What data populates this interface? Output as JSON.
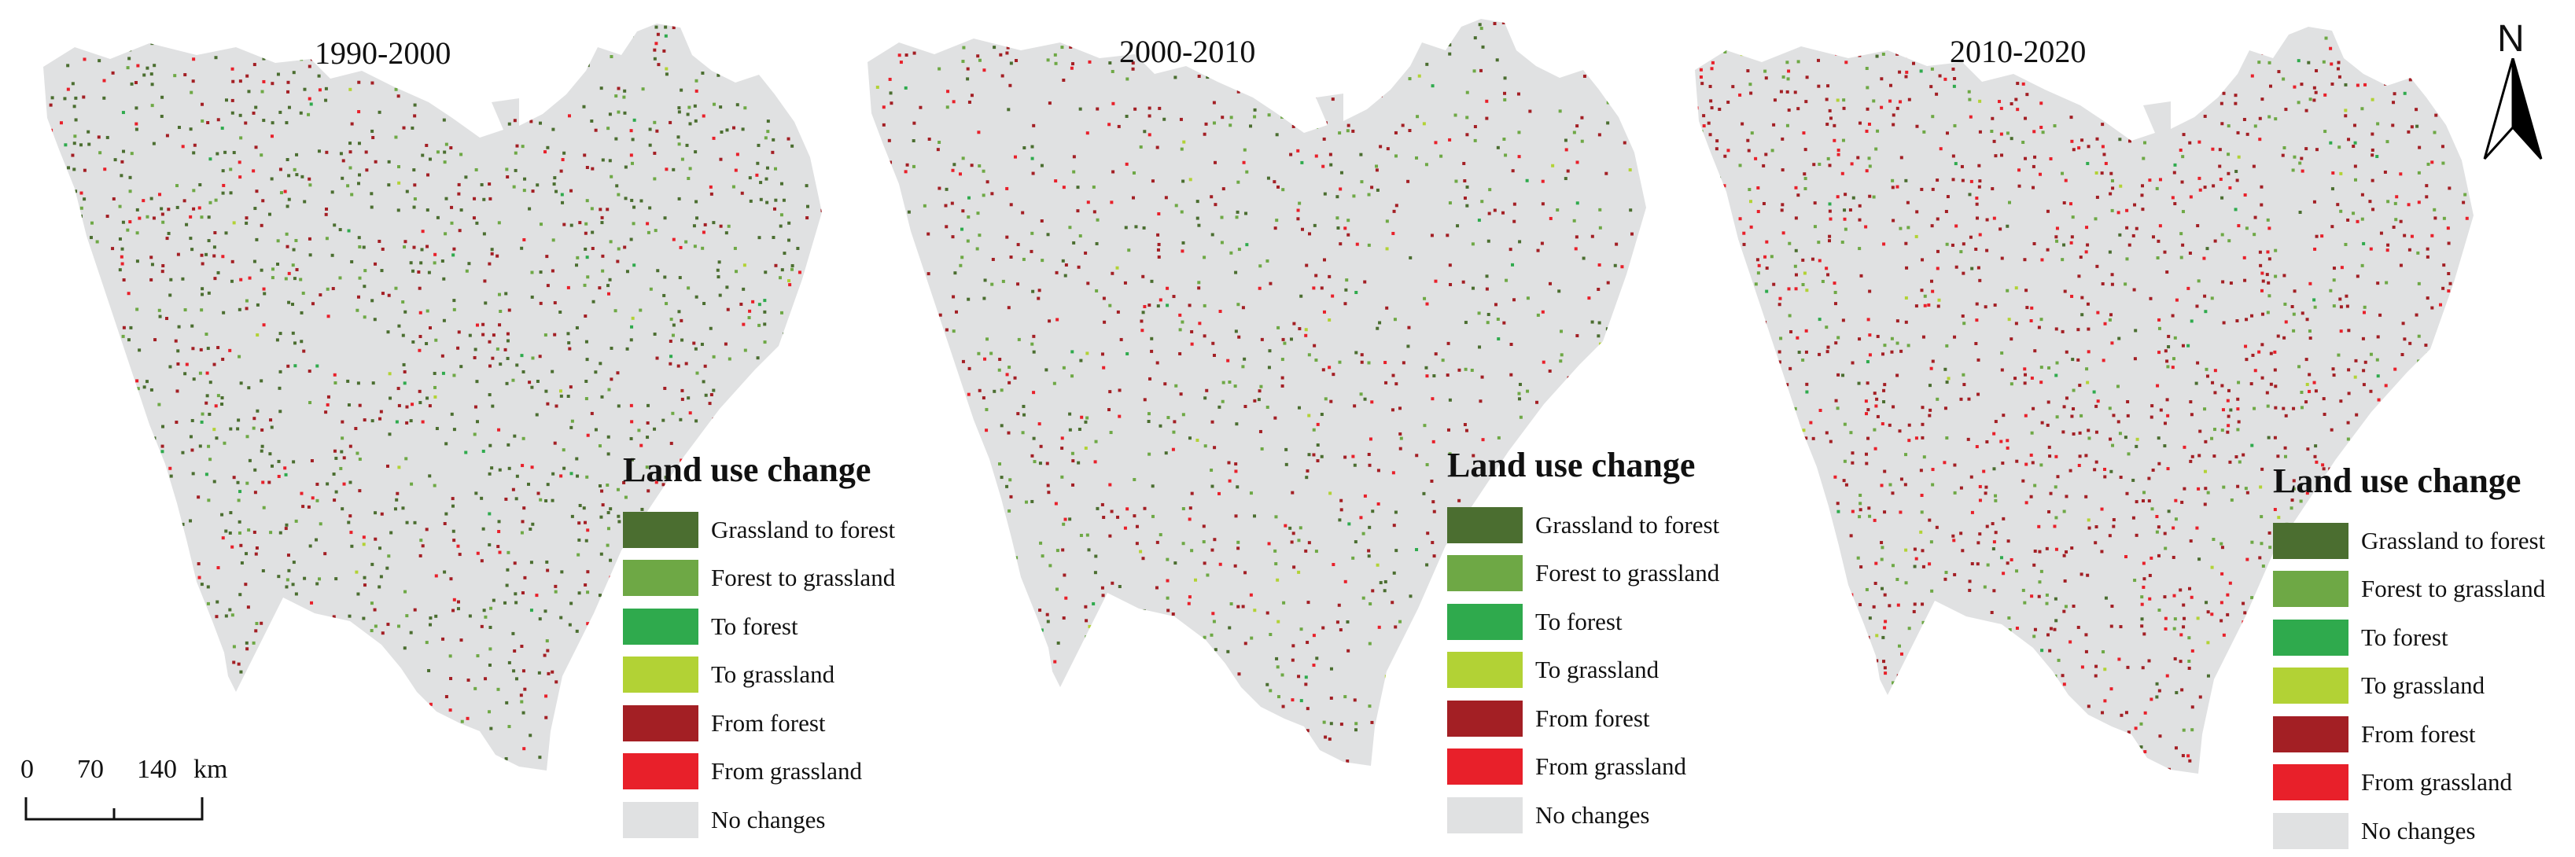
{
  "maps": [
    {
      "id": "p1",
      "title": "1990-2000",
      "density": {
        "grassland_to_forest": 0.1,
        "forest_to_grassland": 0.04,
        "to_forest": 0.005,
        "to_grassland": 0.004,
        "from_forest": 0.06,
        "from_grassland": 0.02
      }
    },
    {
      "id": "p2",
      "title": "2000-2010",
      "density": {
        "grassland_to_forest": 0.03,
        "forest_to_grassland": 0.04,
        "to_forest": 0.004,
        "to_grassland": 0.006,
        "from_forest": 0.06,
        "from_grassland": 0.02
      }
    },
    {
      "id": "p3",
      "title": "2010-2020",
      "density": {
        "grassland_to_forest": 0.01,
        "forest_to_grassland": 0.05,
        "to_forest": 0.004,
        "to_grassland": 0.006,
        "from_forest": 0.11,
        "from_grassland": 0.05
      }
    }
  ],
  "legend": {
    "title": "Land use change",
    "items": [
      {
        "key": "grassland_to_forest",
        "label": "Grassland to forest",
        "color": "#4b6e30"
      },
      {
        "key": "forest_to_grassland",
        "label": "Forest to grassland",
        "color": "#6ea845"
      },
      {
        "key": "to_forest",
        "label": "To forest",
        "color": "#2faa4d"
      },
      {
        "key": "to_grassland",
        "label": "To grassland",
        "color": "#b2d235"
      },
      {
        "key": "from_forest",
        "label": "From forest",
        "color": "#a31f24"
      },
      {
        "key": "from_grassland",
        "label": "From grassland",
        "color": "#e8202a"
      },
      {
        "key": "no_change",
        "label": "No changes",
        "color": "#e0e1e2"
      }
    ]
  },
  "scale_bar": {
    "labels": [
      "0",
      "70",
      "140"
    ],
    "unit": "km"
  },
  "north_arrow": {
    "label": "N"
  },
  "colors": {
    "background": "#ffffff",
    "region_fill": "#e0e1e2"
  }
}
